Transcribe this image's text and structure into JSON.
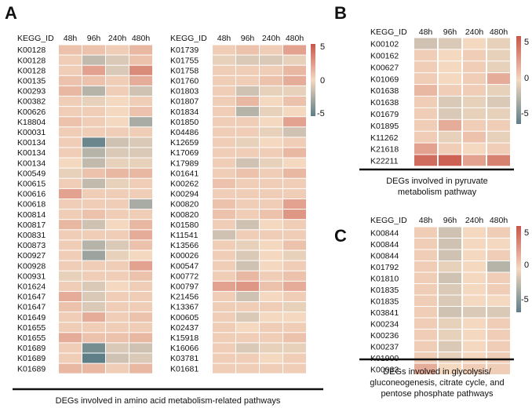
{
  "figure": {
    "panel_labels": [
      "A",
      "B",
      "C"
    ],
    "captions": {
      "A": [
        "DEGs involved in amino acid metabolism-related pathways"
      ],
      "B": [
        "DEGs involved in pyruvate",
        "metabolism pathway"
      ],
      "C": [
        "DEGs involved in glycolysis/",
        "gluconeogenesis, citrate cycle, and",
        "pentose phosphate pathways"
      ]
    },
    "scale_ticks": [
      "5",
      "0",
      "-5"
    ],
    "colors": {
      "high": "#c8564a",
      "mid": "#f4d8c0",
      "low": "#5e7f88"
    }
  },
  "chart_data": [
    {
      "type": "heatmap",
      "panel": "A-left",
      "row_header": "KEGG_ID",
      "columns": [
        "48h",
        "96h",
        "240h",
        "480h"
      ],
      "rows": [
        "K00128",
        "K00128",
        "K00128",
        "K00135",
        "K00293",
        "K00382",
        "K00626",
        "K18804",
        "K00031",
        "K00134",
        "K00134",
        "K00134",
        "K00549",
        "K00615",
        "K00616",
        "K00618",
        "K00814",
        "K00817",
        "K00831",
        "K00873",
        "K00927",
        "K00928",
        "K00931",
        "K01624",
        "K01647",
        "K01647",
        "K01649",
        "K01655",
        "K01655",
        "K01689",
        "K01689",
        "K01689"
      ],
      "values": [
        [
          1,
          1,
          0.5,
          1.5
        ],
        [
          0.5,
          -2,
          -1,
          1
        ],
        [
          0.5,
          2.5,
          -1,
          3.5
        ],
        [
          1,
          1,
          0.5,
          2
        ],
        [
          1.5,
          -2.5,
          0.5,
          -1.5
        ],
        [
          0.5,
          -0.5,
          0,
          0.5
        ],
        [
          0.5,
          0.5,
          0,
          1
        ],
        [
          1,
          0.5,
          0,
          -3
        ],
        [
          0.5,
          0.5,
          0.5,
          0.5
        ],
        [
          0.5,
          -5.5,
          -1.5,
          -1
        ],
        [
          0.5,
          -2.5,
          -1,
          -1
        ],
        [
          0,
          -2,
          -0.5,
          -0.5
        ],
        [
          -0.5,
          1,
          1.5,
          1.5
        ],
        [
          0.5,
          -2,
          -0.5,
          0.5
        ],
        [
          2.5,
          0.5,
          0.5,
          0.5
        ],
        [
          0.5,
          0.5,
          0.5,
          -3
        ],
        [
          0.5,
          1,
          0.5,
          0.5
        ],
        [
          1.5,
          -1.5,
          0,
          1.5
        ],
        [
          0.5,
          0.5,
          0.5,
          2
        ],
        [
          0.5,
          -2.5,
          -1,
          1
        ],
        [
          0.5,
          -3.5,
          -0.5,
          0
        ],
        [
          0.5,
          0.5,
          0.5,
          2.5
        ],
        [
          -0.5,
          0.5,
          0.5,
          1
        ],
        [
          0.5,
          -1,
          0,
          0.5
        ],
        [
          2,
          -1,
          0.5,
          0.5
        ],
        [
          1,
          -1,
          0.5,
          0.5
        ],
        [
          0.5,
          2,
          0.5,
          1
        ],
        [
          0.5,
          0.5,
          0.5,
          0.5
        ],
        [
          2,
          1,
          1,
          1.5
        ],
        [
          0.5,
          -5,
          -1,
          -1.5
        ],
        [
          0.5,
          -6,
          -1.5,
          -1
        ],
        [
          1.5,
          1.5,
          0.5,
          1.5
        ]
      ],
      "zlim": [
        -6,
        6
      ]
    },
    {
      "type": "heatmap",
      "panel": "A-right",
      "row_header": "KEGG_ID",
      "columns": [
        "48h",
        "96h",
        "240h",
        "480h"
      ],
      "rows": [
        "K01739",
        "K01755",
        "K01758",
        "K01760",
        "K01803",
        "K01807",
        "K01834",
        "K01850",
        "K04486",
        "K12659",
        "K17069",
        "K17989",
        "K01641",
        "K00262",
        "K00294",
        "K00820",
        "K00820",
        "K01580",
        "K11541",
        "K13566",
        "K00026",
        "K00547",
        "K00772",
        "K00797",
        "K21456",
        "K13367",
        "K00605",
        "K02437",
        "K15918",
        "K16066",
        "K03781",
        "K01681"
      ],
      "values": [
        [
          0.5,
          1,
          0.5,
          2.5
        ],
        [
          -0.5,
          -1,
          -1,
          -0.5
        ],
        [
          0.5,
          0.5,
          0.5,
          1.5
        ],
        [
          0.5,
          0.5,
          1,
          2
        ],
        [
          0.5,
          -1.5,
          -0.5,
          -0.5
        ],
        [
          0.5,
          1.5,
          0,
          1
        ],
        [
          0.5,
          -2.5,
          -0.5,
          0
        ],
        [
          0.5,
          0.5,
          0,
          2.5
        ],
        [
          0.5,
          0.5,
          -0.5,
          -1.5
        ],
        [
          0.5,
          -0.5,
          0,
          0.5
        ],
        [
          0.5,
          0.5,
          0.5,
          1.5
        ],
        [
          0.5,
          -1.5,
          -0.5,
          0
        ],
        [
          0.5,
          1,
          0.5,
          1.5
        ],
        [
          1,
          0.5,
          0.5,
          0.5
        ],
        [
          0.5,
          0.5,
          0.5,
          0.5
        ],
        [
          1,
          0.5,
          0.5,
          2.5
        ],
        [
          1,
          0.5,
          1,
          3
        ],
        [
          0.5,
          -1.5,
          0,
          0.5
        ],
        [
          -1.5,
          0.5,
          0.5,
          0.5
        ],
        [
          0.5,
          -0.5,
          0,
          1
        ],
        [
          0.5,
          -1,
          0,
          -0.5
        ],
        [
          0.5,
          -1.5,
          0,
          0.5
        ],
        [
          0.5,
          1.5,
          0.5,
          1
        ],
        [
          2.5,
          3,
          1,
          2
        ],
        [
          0.5,
          -1.5,
          0,
          0.5
        ],
        [
          0.5,
          0.5,
          0.5,
          -0.5
        ],
        [
          0.5,
          -1,
          0,
          0
        ],
        [
          0.5,
          0,
          0.5,
          0.5
        ],
        [
          0.5,
          0.5,
          0.5,
          1
        ],
        [
          0.5,
          -1,
          -0.5,
          -0.5
        ],
        [
          0.5,
          0.5,
          0,
          0.5
        ],
        [
          0.5,
          0.5,
          0.5,
          0.5
        ]
      ],
      "zlim": [
        -6,
        6
      ]
    },
    {
      "type": "heatmap",
      "panel": "B",
      "row_header": "KEGG_ID",
      "columns": [
        "48h",
        "96h",
        "240h",
        "480h"
      ],
      "rows": [
        "K00102",
        "K00162",
        "K00627",
        "K01069",
        "K01638",
        "K01638",
        "K01679",
        "K01895",
        "K11262",
        "K21618",
        "K22211"
      ],
      "values": [
        [
          -1.5,
          -1,
          0,
          -0.5
        ],
        [
          0.5,
          0,
          0.5,
          -0.5
        ],
        [
          0.5,
          0,
          0.5,
          -0.5
        ],
        [
          0.5,
          0,
          0.5,
          2
        ],
        [
          1.5,
          0.5,
          0.5,
          -0.5
        ],
        [
          0.5,
          -1,
          -0.5,
          -1
        ],
        [
          0.5,
          -1,
          -0.5,
          -0.5
        ],
        [
          0.5,
          2,
          0.5,
          0.5
        ],
        [
          0.5,
          -0.5,
          1,
          -0.5
        ],
        [
          2.5,
          0.5,
          0,
          0.5
        ],
        [
          5,
          5.5,
          2.5,
          4
        ]
      ],
      "zlim": [
        -6,
        6
      ]
    },
    {
      "type": "heatmap",
      "panel": "C",
      "row_header": "KEGG_ID",
      "columns": [
        "48h",
        "96h",
        "240h",
        "480h"
      ],
      "rows": [
        "K00844",
        "K00844",
        "K00844",
        "K01792",
        "K01810",
        "K01835",
        "K01835",
        "K03841",
        "K00234",
        "K00236",
        "K00237",
        "K01900",
        "K00033"
      ],
      "values": [
        [
          0.5,
          -1.5,
          0,
          0.5
        ],
        [
          0.5,
          -1.5,
          0,
          0
        ],
        [
          0.5,
          -1.5,
          0,
          0.5
        ],
        [
          0.5,
          -0.5,
          0,
          -2.5
        ],
        [
          0.5,
          -1.5,
          0,
          0.5
        ],
        [
          0.5,
          -1,
          0,
          0.5
        ],
        [
          0.5,
          -1,
          0,
          0
        ],
        [
          0.5,
          -1.5,
          -1,
          -1
        ],
        [
          0.5,
          -0.5,
          0,
          0.5
        ],
        [
          0.5,
          -0.5,
          0,
          0.5
        ],
        [
          0.5,
          -1,
          0,
          0.5
        ],
        [
          0.5,
          -0.5,
          0,
          0.5
        ],
        [
          2,
          0,
          0.5,
          0.5
        ]
      ],
      "zlim": [
        -6,
        6
      ]
    }
  ]
}
